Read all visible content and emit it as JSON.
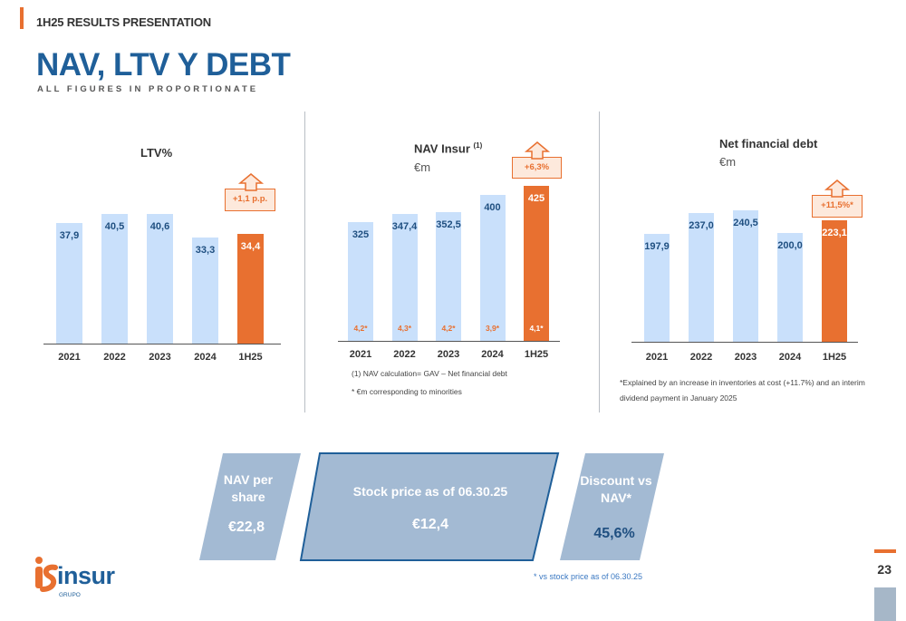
{
  "header": {
    "section": "1H25 RESULTS PRESENTATION",
    "title": "NAV, LTV Y DEBT",
    "subtitle": "ALL FIGURES IN PROPORTIONATE"
  },
  "chart_data": [
    {
      "type": "bar",
      "title": "LTV%",
      "categories": [
        "2021",
        "2022",
        "2023",
        "2024",
        "1H25"
      ],
      "values": [
        37.9,
        40.5,
        40.6,
        33.3,
        34.4
      ],
      "value_labels": [
        "37,9",
        "40,5",
        "40,6",
        "33,3",
        "34,4"
      ],
      "highlight": "1H25",
      "callout": "+1,1 p.p."
    },
    {
      "type": "bar",
      "title": "NAV Insur",
      "title_sup": "(1)",
      "unit": "€m",
      "categories": [
        "2021",
        "2022",
        "2023",
        "2024",
        "1H25"
      ],
      "values": [
        325,
        347.4,
        352.5,
        400,
        425
      ],
      "value_labels": [
        "325",
        "347,4",
        "352,5",
        "400",
        "425"
      ],
      "minority_labels": [
        "4,2*",
        "4,3*",
        "4,2*",
        "3,9*",
        "4,1*"
      ],
      "highlight": "1H25",
      "callout": "+6,3%",
      "notes": [
        "(1) NAV calculation= GAV – Net financial debt",
        "* €m corresponding to minorities"
      ]
    },
    {
      "type": "bar",
      "title": "Net financial debt",
      "unit": "€m",
      "categories": [
        "2021",
        "2022",
        "2023",
        "2024",
        "1H25"
      ],
      "values": [
        197.9,
        237.0,
        240.5,
        200.0,
        223.1
      ],
      "value_labels": [
        "197,9",
        "237,0",
        "240,5",
        "200,0",
        "223,1"
      ],
      "highlight": "1H25",
      "callout": "+11,5%*",
      "notes": [
        "*Explained by an increase in inventories at cost (+11.7%) and an interim",
        "dividend payment in January 2025"
      ]
    }
  ],
  "kpis": {
    "nav_share_label1": "NAV per",
    "nav_share_label2": "share",
    "nav_share_value": "€22,8",
    "stock_label": "Stock price as of 06.30.25",
    "stock_value": "€12,4",
    "discount_label1": "Discount vs",
    "discount_label2": "NAV*",
    "discount_value": "45,6%",
    "footnote": "* vs stock price as of 06.30.25"
  },
  "logo": {
    "text": "insur",
    "sub": "GRUPO"
  },
  "page_number": "23",
  "colors": {
    "orange": "#e87030",
    "light_bar": "#c9e0fb",
    "navy": "#1f5f99",
    "kpi": "#a3bad3"
  }
}
